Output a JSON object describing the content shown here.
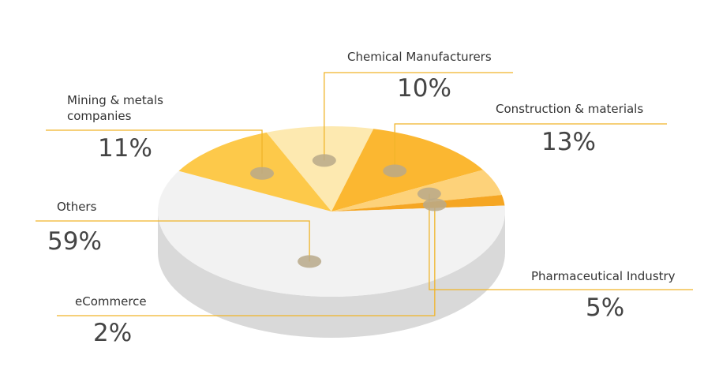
{
  "chart_data": {
    "type": "pie3d",
    "categories": [
      "Chemical Manufacturers",
      "Construction & materials",
      "Pharmaceutical Industry",
      "eCommerce",
      "Others",
      "Mining & metals companies"
    ],
    "values": [
      10,
      13,
      5,
      2,
      59,
      11
    ],
    "value_labels": [
      "10%",
      "13%",
      "5%",
      "2%",
      "59%",
      "11%"
    ],
    "colors": [
      "#fde9b0",
      "#fbb731",
      "#fdd27a",
      "#f5a623",
      "#f2f2f2",
      "#fdc94a"
    ]
  }
}
